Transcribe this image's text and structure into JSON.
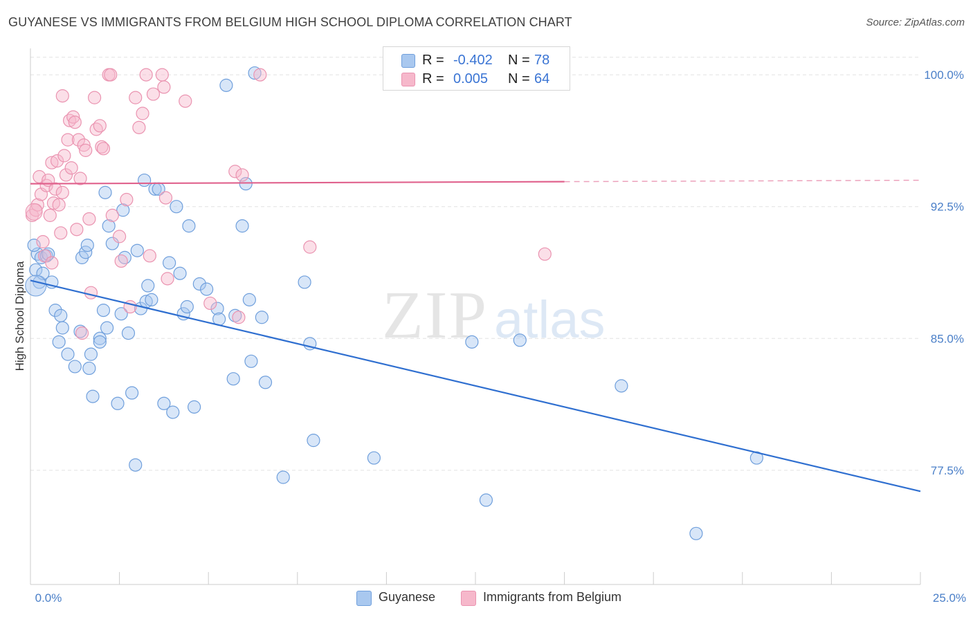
{
  "header": {
    "title": "GUYANESE VS IMMIGRANTS FROM BELGIUM HIGH SCHOOL DIPLOMA CORRELATION CHART",
    "source": "Source: ZipAtlas.com"
  },
  "watermark": {
    "zip": "ZIP",
    "atlas": "atlas"
  },
  "legend": {
    "rows": [
      {
        "r_label": "R =",
        "r_value": "-0.402",
        "n_label": "N =",
        "n_value": "78"
      },
      {
        "r_label": "R =",
        "r_value": "0.005",
        "n_label": "N =",
        "n_value": "64"
      }
    ]
  },
  "bottom_legend": {
    "items": [
      "Guyanese",
      "Immigrants from Belgium"
    ]
  },
  "colors": {
    "blue_fill": "#a9c8ef",
    "blue_stroke": "#6f9fdc",
    "blue_line": "#2f6fd0",
    "pink_fill": "#f6b8cb",
    "pink_stroke": "#ea93b0",
    "pink_line": "#e0628d",
    "tick_text": "#4a7fc8",
    "grid": "#e2e2e2"
  },
  "chart_data": {
    "type": "scatter",
    "title": "GUYANESE VS IMMIGRANTS FROM BELGIUM HIGH SCHOOL DIPLOMA CORRELATION CHART",
    "xlabel": "",
    "ylabel": "High School Diploma",
    "xlim": [
      0,
      25
    ],
    "ylim": [
      71.0,
      101.5
    ],
    "x_tick_labels": [
      "0.0%",
      "25.0%"
    ],
    "y_ticks": [
      77.5,
      85.0,
      92.5,
      100.0
    ],
    "y_tick_labels": [
      "77.5%",
      "85.0%",
      "92.5%",
      "100.0%"
    ],
    "grid": true,
    "legend_position": "top-center",
    "series": [
      {
        "name": "Guyanese",
        "color": "#a9c8ef",
        "points": [
          [
            0.15,
            88.9
          ],
          [
            0.2,
            89.8
          ],
          [
            0.25,
            88.2
          ],
          [
            0.3,
            89.6
          ],
          [
            0.45,
            89.7
          ],
          [
            0.5,
            89.8
          ],
          [
            0.6,
            88.2
          ],
          [
            0.7,
            86.6
          ],
          [
            0.85,
            86.3
          ],
          [
            0.9,
            85.6
          ],
          [
            0.8,
            84.8
          ],
          [
            1.05,
            84.1
          ],
          [
            1.25,
            83.4
          ],
          [
            1.4,
            85.4
          ],
          [
            1.45,
            89.6
          ],
          [
            1.55,
            89.9
          ],
          [
            1.6,
            90.3
          ],
          [
            1.65,
            83.3
          ],
          [
            1.7,
            84.1
          ],
          [
            1.75,
            81.7
          ],
          [
            1.95,
            85.0
          ],
          [
            1.95,
            84.8
          ],
          [
            2.05,
            86.6
          ],
          [
            2.1,
            93.3
          ],
          [
            2.15,
            85.6
          ],
          [
            2.2,
            91.4
          ],
          [
            2.3,
            90.4
          ],
          [
            2.45,
            81.3
          ],
          [
            2.55,
            86.4
          ],
          [
            2.65,
            89.6
          ],
          [
            2.6,
            92.3
          ],
          [
            2.75,
            85.3
          ],
          [
            2.85,
            81.9
          ],
          [
            2.95,
            77.8
          ],
          [
            3.0,
            90.0
          ],
          [
            3.1,
            86.7
          ],
          [
            3.2,
            94.0
          ],
          [
            3.25,
            87.1
          ],
          [
            3.3,
            88.0
          ],
          [
            3.4,
            87.2
          ],
          [
            3.5,
            93.5
          ],
          [
            3.6,
            93.5
          ],
          [
            3.75,
            81.3
          ],
          [
            3.9,
            89.3
          ],
          [
            4.0,
            80.8
          ],
          [
            4.1,
            92.5
          ],
          [
            4.2,
            88.7
          ],
          [
            4.3,
            86.4
          ],
          [
            4.4,
            86.8
          ],
          [
            4.45,
            91.4
          ],
          [
            4.6,
            81.1
          ],
          [
            4.75,
            88.1
          ],
          [
            4.95,
            87.8
          ],
          [
            5.25,
            86.7
          ],
          [
            5.3,
            86.1
          ],
          [
            5.5,
            99.4
          ],
          [
            5.7,
            82.7
          ],
          [
            5.75,
            86.3
          ],
          [
            5.95,
            91.4
          ],
          [
            6.05,
            93.8
          ],
          [
            6.15,
            87.2
          ],
          [
            6.2,
            83.7
          ],
          [
            6.3,
            100.1
          ],
          [
            6.5,
            86.2
          ],
          [
            6.6,
            82.5
          ],
          [
            7.1,
            77.1
          ],
          [
            7.7,
            88.2
          ],
          [
            7.85,
            84.7
          ],
          [
            7.95,
            79.2
          ],
          [
            9.65,
            78.2
          ],
          [
            12.4,
            84.8
          ],
          [
            12.8,
            75.8
          ],
          [
            13.75,
            84.9
          ],
          [
            16.6,
            82.3
          ],
          [
            18.7,
            73.9
          ],
          [
            20.4,
            78.2
          ],
          [
            0.1,
            90.3
          ],
          [
            0.35,
            88.7
          ]
        ]
      },
      {
        "name": "Immigrants from Belgium",
        "color": "#f6b8cb",
        "points": [
          [
            0.05,
            92.0
          ],
          [
            0.15,
            92.3
          ],
          [
            0.2,
            92.6
          ],
          [
            0.25,
            94.2
          ],
          [
            0.3,
            93.2
          ],
          [
            0.35,
            90.5
          ],
          [
            0.4,
            89.7
          ],
          [
            0.45,
            93.7
          ],
          [
            0.5,
            94.0
          ],
          [
            0.55,
            92.0
          ],
          [
            0.6,
            89.3
          ],
          [
            0.6,
            95.0
          ],
          [
            0.65,
            92.7
          ],
          [
            0.7,
            93.5
          ],
          [
            0.75,
            95.1
          ],
          [
            0.8,
            92.6
          ],
          [
            0.85,
            91.0
          ],
          [
            0.9,
            93.3
          ],
          [
            0.95,
            95.4
          ],
          [
            1.0,
            94.3
          ],
          [
            0.9,
            98.8
          ],
          [
            1.05,
            96.3
          ],
          [
            1.1,
            97.4
          ],
          [
            1.15,
            94.7
          ],
          [
            1.2,
            97.6
          ],
          [
            1.25,
            97.3
          ],
          [
            1.3,
            91.2
          ],
          [
            1.35,
            96.3
          ],
          [
            1.4,
            94.1
          ],
          [
            1.45,
            85.3
          ],
          [
            1.5,
            96.0
          ],
          [
            1.55,
            95.7
          ],
          [
            1.65,
            91.8
          ],
          [
            1.7,
            87.6
          ],
          [
            1.8,
            98.7
          ],
          [
            1.85,
            96.9
          ],
          [
            1.95,
            97.1
          ],
          [
            2.0,
            95.9
          ],
          [
            2.05,
            95.8
          ],
          [
            2.2,
            100.0
          ],
          [
            2.25,
            100.0
          ],
          [
            2.3,
            92.0
          ],
          [
            2.5,
            90.8
          ],
          [
            2.55,
            89.4
          ],
          [
            2.7,
            92.9
          ],
          [
            2.8,
            86.8
          ],
          [
            2.95,
            98.7
          ],
          [
            3.05,
            97.0
          ],
          [
            3.15,
            97.8
          ],
          [
            3.25,
            100.0
          ],
          [
            3.35,
            89.7
          ],
          [
            3.45,
            98.9
          ],
          [
            3.7,
            100.0
          ],
          [
            3.75,
            99.3
          ],
          [
            3.8,
            93.0
          ],
          [
            3.85,
            88.4
          ],
          [
            4.35,
            98.5
          ],
          [
            5.05,
            87.0
          ],
          [
            5.75,
            94.5
          ],
          [
            5.85,
            86.2
          ],
          [
            5.95,
            94.3
          ],
          [
            6.45,
            100.0
          ],
          [
            7.85,
            90.2
          ],
          [
            14.45,
            89.8
          ]
        ]
      }
    ],
    "trend_lines": [
      {
        "series": "Guyanese",
        "x": [
          0,
          25
        ],
        "y": [
          88.3,
          76.3
        ]
      },
      {
        "series": "Immigrants from Belgium",
        "x": [
          0,
          25
        ],
        "y": [
          93.8,
          94.0
        ]
      }
    ]
  }
}
